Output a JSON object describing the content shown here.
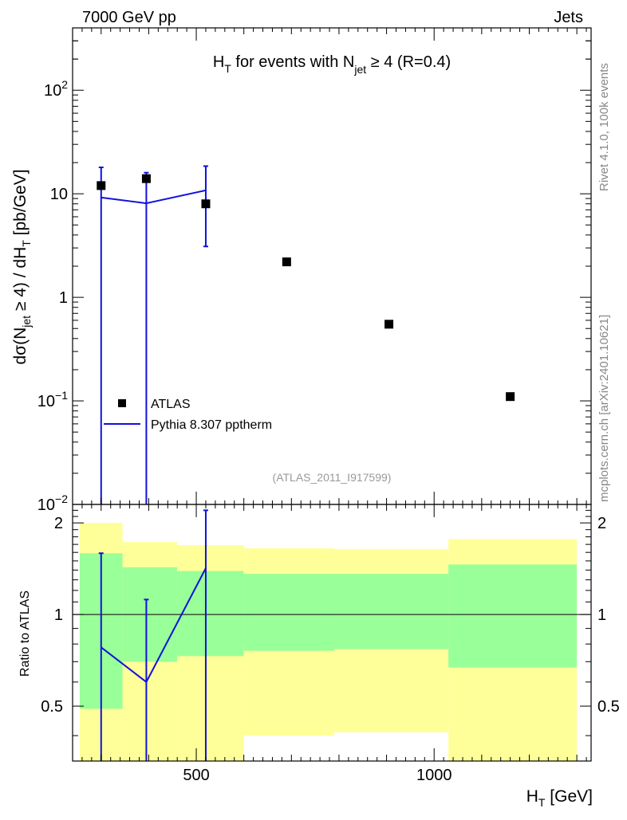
{
  "header": {
    "left": "7000 GeV pp",
    "right": "Jets"
  },
  "side_labels": {
    "rivet": "Rivet 4.1.0,  100k events",
    "mcplots": "mcplots.cern.ch [arXiv:2401.10621]"
  },
  "main_plot": {
    "title_parts": [
      "H",
      "T",
      " for events with N",
      "jet",
      " ≥ 4 (R=0.4)"
    ],
    "ylabel_parts": [
      "dσ(N",
      "jet",
      " ≥ 4) / dH",
      "T",
      " [pb/GeV]"
    ],
    "analysis_id": "(ATLAS_2011_I917599)",
    "y_ticks": [
      {
        "base": "10",
        "exp": "2",
        "value": 100
      },
      {
        "base": "10",
        "exp": "",
        "value": 10
      },
      {
        "base": "1",
        "exp": "",
        "value": 1
      },
      {
        "base": "10",
        "exp": "−1",
        "value": 0.1
      },
      {
        "base": "10",
        "exp": "−2",
        "value": 0.01
      }
    ]
  },
  "ratio_plot": {
    "ylabel": "Ratio to ATLAS",
    "y_ticks": [
      {
        "label": "2",
        "value": 2
      },
      {
        "label": "1",
        "value": 1
      },
      {
        "label": "0.5",
        "value": 0.5
      }
    ]
  },
  "x_axis": {
    "label_parts": [
      "H",
      "T",
      " [GeV]"
    ],
    "ticks": [
      {
        "label": "500",
        "value": 500
      },
      {
        "label": "1000",
        "value": 1000
      }
    ]
  },
  "legend": [
    {
      "label": "ATLAS",
      "kind": "marker"
    },
    {
      "label": "Pythia 8.307 pptherm",
      "kind": "line"
    }
  ],
  "colors": {
    "data": "#000000",
    "mc": "#1111dd",
    "band_inner": "#99ff99",
    "band_outer": "#ffff99"
  },
  "chart_data": {
    "type": "line",
    "x_range": [
      240,
      1330
    ],
    "main_y_range": [
      0.01,
      400
    ],
    "main_y_scale": "log",
    "ratio_y_range": [
      0.33,
      2.3
    ],
    "ratio_y_scale": "log",
    "bins": [
      {
        "x1": 255,
        "x2": 345,
        "x": 300,
        "data": 12.0,
        "band_in": [
          0.49,
          1.59
        ],
        "band_out": [
          0.2,
          2.0
        ]
      },
      {
        "x1": 345,
        "x2": 460,
        "x": 395,
        "data": 14.0,
        "band_in": [
          0.7,
          1.43
        ],
        "band_out": [
          0.2,
          1.73
        ]
      },
      {
        "x1": 460,
        "x2": 600,
        "x": 520,
        "data": 8.0,
        "band_in": [
          0.73,
          1.39
        ],
        "band_out": [
          0.2,
          1.69
        ]
      },
      {
        "x1": 600,
        "x2": 790,
        "x": 690,
        "data": 2.2,
        "band_in": [
          0.76,
          1.36
        ],
        "band_out": [
          0.4,
          1.65
        ]
      },
      {
        "x1": 790,
        "x2": 1030,
        "x": 905,
        "data": 0.55,
        "band_in": [
          0.77,
          1.36
        ],
        "band_out": [
          0.41,
          1.64
        ]
      },
      {
        "x1": 1030,
        "x2": 1300,
        "x": 1160,
        "data": 0.11,
        "band_in": [
          0.67,
          1.46
        ],
        "band_out": [
          0.2,
          1.77
        ]
      }
    ],
    "mc": [
      {
        "x": 300,
        "y": 9.2,
        "err_lo": 0.001,
        "err_hi": 18.0,
        "ratio": 0.78,
        "ratio_err_lo": 0.2,
        "ratio_err_hi": 1.59
      },
      {
        "x": 395,
        "y": 8.1,
        "err_lo": 0.001,
        "err_hi": 16.0,
        "ratio": 0.6,
        "ratio_err_lo": 0.2,
        "ratio_err_hi": 1.12
      },
      {
        "x": 520,
        "y": 10.8,
        "err_lo": 3.1,
        "err_hi": 18.5,
        "ratio": 1.42,
        "ratio_err_lo": 0.2,
        "ratio_err_hi": 2.2
      }
    ]
  }
}
